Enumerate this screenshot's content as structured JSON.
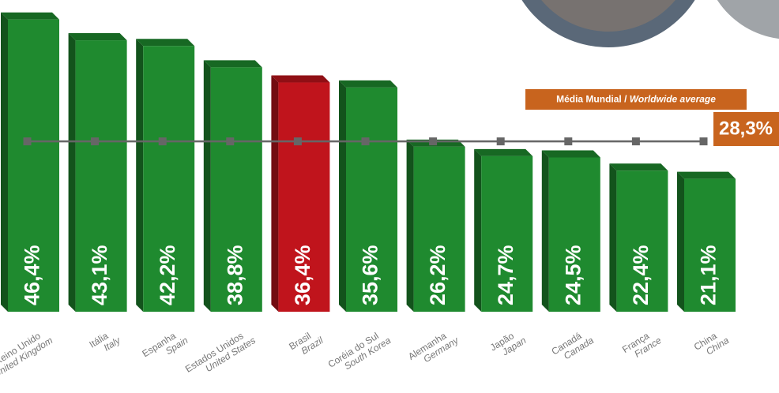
{
  "chart_data": {
    "type": "bar",
    "categories": [
      "Reino Unido",
      "Itália",
      "Espanha",
      "Estados Unidos",
      "Brasil",
      "Coréia do Sul",
      "Alemanha",
      "Japão",
      "Canadá",
      "França",
      "China"
    ],
    "categories_en": [
      "United Kingdom",
      "Italy",
      "Spain",
      "United States",
      "Brazil",
      "South Korea",
      "Germany",
      "Japan",
      "Canada",
      "France",
      "China"
    ],
    "values": [
      46.4,
      43.1,
      42.2,
      38.8,
      36.4,
      35.6,
      26.2,
      24.7,
      24.5,
      22.4,
      21.1
    ],
    "value_labels": [
      "46,4%",
      "43,1%",
      "42,2%",
      "38,8%",
      "36,4%",
      "35,6%",
      "26,2%",
      "24,7%",
      "24,5%",
      "22,4%",
      "21,1%"
    ],
    "colors": [
      "#1f8a2f",
      "#1f8a2f",
      "#1f8a2f",
      "#1f8a2f",
      "#c0141c",
      "#1f8a2f",
      "#1f8a2f",
      "#1f8a2f",
      "#1f8a2f",
      "#1f8a2f",
      "#1f8a2f"
    ],
    "ylim": [
      0,
      50
    ],
    "average": {
      "label": "Média Mundial /",
      "label_en": "Worldwide average",
      "value": 28.3,
      "value_label": "28,3%",
      "color": "#c8641e"
    }
  }
}
